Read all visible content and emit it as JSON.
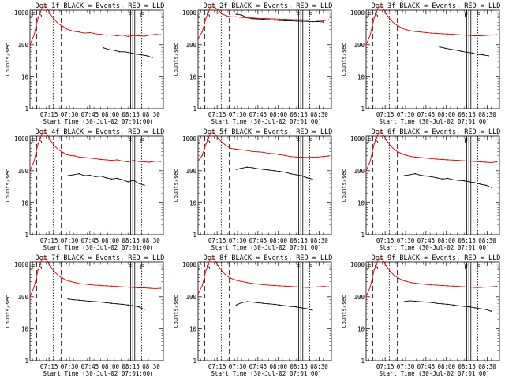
{
  "figure": {
    "xlabel": "Start Time (30-Jul-02 07:01:00)",
    "ylabel": "Counts/sec",
    "x_ticks": [
      "07:15",
      "07:30",
      "07:45",
      "08:00",
      "08:15",
      "08:30"
    ],
    "y_ticks": [
      "1",
      "10",
      "100",
      "1000"
    ],
    "colors": {
      "events": "#000000",
      "lld": "#e00000"
    }
  },
  "chart_data": [
    {
      "type": "line",
      "title": "Det 1f BLACK = Events, RED = LLD",
      "xlabel": "Start Time (30-Jul-02 07:01:00)",
      "ylabel": "Counts/sec",
      "x_unit": "minutes after 07:01",
      "ylim": [
        1,
        1200
      ],
      "ylog": true,
      "xlim": [
        0,
        98
      ],
      "markers": [
        "E",
        "S",
        "F",
        "E"
      ],
      "series": [
        {
          "name": "Events",
          "x": [
            54,
            58,
            62,
            66,
            70,
            74,
            78,
            82,
            86,
            90
          ],
          "values": [
            80,
            70,
            67,
            60,
            60,
            55,
            51,
            48,
            45,
            40
          ]
        },
        {
          "name": "LLD",
          "x": [
            0,
            3,
            6,
            9,
            12,
            15,
            18,
            21,
            24,
            27,
            30,
            33,
            36,
            40,
            44,
            48,
            52,
            56,
            60,
            64,
            68,
            72,
            76,
            80,
            84,
            88,
            92,
            96
          ],
          "values": [
            100,
            200,
            700,
            1500,
            1500,
            900,
            600,
            450,
            380,
            310,
            280,
            260,
            250,
            230,
            240,
            220,
            210,
            200,
            200,
            190,
            200,
            180,
            195,
            190,
            185,
            200,
            210,
            205
          ]
        }
      ]
    },
    {
      "type": "line",
      "title": "Det 2f BLACK = Events, RED = LLD",
      "xlabel": "Start Time (30-Jul-02 07:01:00)",
      "ylabel": "Counts/sec",
      "x_unit": "minutes after 07:01",
      "ylim": [
        1,
        1200
      ],
      "ylog": true,
      "xlim": [
        0,
        98
      ],
      "markers": [
        "S",
        "F",
        "E"
      ],
      "series": [
        {
          "name": "Events",
          "x": [
            28,
            32,
            36,
            40,
            44,
            48,
            52,
            56,
            60,
            64,
            68,
            72,
            76,
            80,
            84,
            88,
            92
          ],
          "values": [
            900,
            850,
            700,
            650,
            640,
            620,
            600,
            590,
            570,
            560,
            560,
            550,
            540,
            540,
            520,
            530,
            510
          ]
        },
        {
          "name": "LLD",
          "x": [
            0,
            3,
            6,
            9,
            12,
            15,
            18,
            21,
            24,
            28,
            32,
            36,
            40,
            44,
            48,
            52,
            56,
            60,
            64,
            68,
            72,
            76,
            80,
            84,
            88,
            92,
            96
          ],
          "values": [
            150,
            250,
            700,
            1500,
            1500,
            1200,
            900,
            800,
            750,
            750,
            720,
            700,
            690,
            670,
            660,
            650,
            640,
            630,
            620,
            610,
            600,
            600,
            590,
            590,
            580,
            560,
            600
          ]
        }
      ]
    },
    {
      "type": "line",
      "title": "Det 3f BLACK = Events, RED = LLD",
      "xlabel": "Start Time (30-Jul-02 07:01:00)",
      "ylabel": "Counts/sec",
      "x_unit": "minutes after 07:01",
      "ylim": [
        1,
        1200
      ],
      "ylog": true,
      "xlim": [
        0,
        98
      ],
      "markers": [
        "E",
        "S",
        "F",
        "E"
      ],
      "series": [
        {
          "name": "Events",
          "x": [
            54,
            58,
            62,
            66,
            70,
            74,
            78,
            82,
            86,
            90
          ],
          "values": [
            85,
            78,
            72,
            68,
            62,
            58,
            55,
            50,
            48,
            45
          ]
        },
        {
          "name": "LLD",
          "x": [
            0,
            3,
            6,
            9,
            12,
            15,
            18,
            21,
            24,
            27,
            30,
            33,
            36,
            40,
            44,
            48,
            52,
            56,
            60,
            64,
            68,
            72,
            76,
            80,
            84,
            88,
            92,
            96
          ],
          "values": [
            100,
            200,
            700,
            1500,
            1500,
            900,
            600,
            450,
            380,
            320,
            290,
            270,
            260,
            250,
            240,
            230,
            225,
            220,
            215,
            210,
            205,
            200,
            195,
            190,
            190,
            195,
            200,
            205
          ]
        }
      ]
    },
    {
      "type": "line",
      "title": "Det 4f BLACK = Events, RED = LLD",
      "xlabel": "Start Time (30-Jul-02 07:01:00)",
      "ylabel": "Counts/sec",
      "x_unit": "minutes after 07:01",
      "ylim": [
        1,
        1200
      ],
      "ylog": true,
      "xlim": [
        0,
        98
      ],
      "markers": [
        "E",
        "S",
        "F",
        "E"
      ],
      "series": [
        {
          "name": "Events",
          "x": [
            28,
            32,
            36,
            40,
            44,
            48,
            52,
            56,
            60,
            64,
            68,
            72,
            76,
            80,
            84
          ],
          "values": [
            70,
            75,
            80,
            70,
            72,
            65,
            68,
            60,
            55,
            58,
            52,
            45,
            50,
            40,
            35
          ]
        },
        {
          "name": "LLD",
          "x": [
            0,
            3,
            6,
            9,
            12,
            15,
            18,
            21,
            24,
            27,
            30,
            33,
            36,
            40,
            44,
            48,
            52,
            56,
            60,
            64,
            68,
            72,
            76,
            80,
            84,
            88,
            92,
            96
          ],
          "values": [
            100,
            200,
            700,
            1500,
            1500,
            900,
            600,
            450,
            380,
            320,
            300,
            290,
            270,
            260,
            250,
            240,
            225,
            220,
            210,
            220,
            200,
            190,
            210,
            195,
            190,
            185,
            200,
            195
          ]
        }
      ]
    },
    {
      "type": "line",
      "title": "Det 5f BLACK = Events, RED = LLD",
      "xlabel": "Start Time (30-Jul-02 07:01:00)",
      "ylabel": "Counts/sec",
      "x_unit": "minutes after 07:01",
      "ylim": [
        1,
        1200
      ],
      "ylog": true,
      "xlim": [
        0,
        98
      ],
      "markers": [
        "S",
        "F",
        "E"
      ],
      "series": [
        {
          "name": "Events",
          "x": [
            28,
            32,
            36,
            40,
            44,
            48,
            52,
            56,
            60,
            64,
            68,
            72,
            76,
            80,
            84
          ],
          "values": [
            110,
            120,
            130,
            125,
            115,
            110,
            105,
            100,
            95,
            90,
            80,
            75,
            70,
            60,
            55
          ]
        },
        {
          "name": "LLD",
          "x": [
            0,
            3,
            6,
            9,
            12,
            15,
            18,
            21,
            24,
            28,
            32,
            36,
            40,
            44,
            48,
            52,
            56,
            60,
            64,
            68,
            72,
            76,
            80,
            84,
            88,
            92,
            96
          ],
          "values": [
            200,
            300,
            700,
            1500,
            1500,
            1000,
            750,
            600,
            500,
            470,
            450,
            430,
            400,
            390,
            380,
            350,
            340,
            320,
            300,
            280,
            270,
            265,
            260,
            265,
            270,
            280,
            290
          ]
        }
      ]
    },
    {
      "type": "line",
      "title": "Det 6f BLACK = Events, RED = LLD",
      "xlabel": "Start Time (30-Jul-02 07:01:00)",
      "ylabel": "Counts/sec",
      "x_unit": "minutes after 07:01",
      "ylim": [
        1,
        1200
      ],
      "ylog": true,
      "xlim": [
        0,
        98
      ],
      "markers": [
        "E",
        "S",
        "F",
        "E"
      ],
      "series": [
        {
          "name": "Events",
          "x": [
            28,
            32,
            36,
            40,
            44,
            48,
            52,
            56,
            60,
            64,
            68,
            72,
            76,
            80,
            84,
            88,
            92
          ],
          "values": [
            70,
            75,
            80,
            72,
            68,
            65,
            60,
            55,
            58,
            52,
            50,
            48,
            45,
            42,
            38,
            35,
            30
          ]
        },
        {
          "name": "LLD",
          "x": [
            0,
            3,
            6,
            9,
            12,
            15,
            18,
            21,
            24,
            27,
            30,
            33,
            36,
            40,
            44,
            48,
            52,
            56,
            60,
            64,
            68,
            72,
            76,
            80,
            84,
            88,
            92,
            96
          ],
          "values": [
            100,
            200,
            700,
            1500,
            1500,
            900,
            600,
            450,
            380,
            330,
            300,
            280,
            270,
            260,
            250,
            240,
            230,
            225,
            220,
            215,
            210,
            205,
            200,
            195,
            190,
            185,
            180,
            190
          ]
        }
      ]
    },
    {
      "type": "line",
      "title": "Det 7f BLACK = Events, RED = LLD",
      "xlabel": "Start Time (30-Jul-02 07:01:00)",
      "ylabel": "Counts/sec",
      "x_unit": "minutes after 07:01",
      "ylim": [
        1,
        1200
      ],
      "ylog": true,
      "xlim": [
        0,
        98
      ],
      "markers": [
        "E",
        "S",
        "F",
        "E"
      ],
      "series": [
        {
          "name": "Events",
          "x": [
            28,
            32,
            36,
            40,
            44,
            48,
            52,
            56,
            60,
            64,
            68,
            72,
            76,
            80,
            84
          ],
          "values": [
            85,
            80,
            78,
            75,
            72,
            70,
            68,
            65,
            62,
            60,
            58,
            55,
            52,
            48,
            40
          ]
        },
        {
          "name": "LLD",
          "x": [
            0,
            3,
            6,
            9,
            12,
            15,
            18,
            21,
            24,
            27,
            30,
            33,
            36,
            40,
            44,
            48,
            52,
            56,
            60,
            64,
            68,
            72,
            76,
            80,
            84,
            88,
            92,
            96
          ],
          "values": [
            100,
            200,
            700,
            1500,
            1500,
            900,
            600,
            450,
            380,
            330,
            300,
            280,
            260,
            250,
            240,
            230,
            225,
            220,
            215,
            210,
            205,
            200,
            195,
            190,
            190,
            185,
            180,
            185
          ]
        }
      ]
    },
    {
      "type": "line",
      "title": "Det 8f BLACK = Events, RED = LLD",
      "xlabel": "Start Time (30-Jul-02 07:01:00)",
      "ylabel": "Counts/sec",
      "x_unit": "minutes after 07:01",
      "ylim": [
        1,
        1200
      ],
      "ylog": true,
      "xlim": [
        0,
        98
      ],
      "markers": [
        "S",
        "F",
        "E"
      ],
      "series": [
        {
          "name": "Events",
          "x": [
            28,
            32,
            36,
            40,
            44,
            48,
            52,
            56,
            60,
            64,
            68,
            72,
            76,
            80,
            84
          ],
          "values": [
            55,
            65,
            70,
            68,
            65,
            62,
            60,
            58,
            55,
            52,
            50,
            48,
            45,
            42,
            38
          ]
        },
        {
          "name": "LLD",
          "x": [
            0,
            3,
            6,
            9,
            12,
            15,
            18,
            21,
            24,
            28,
            32,
            36,
            40,
            44,
            48,
            52,
            56,
            60,
            64,
            68,
            72,
            76,
            80,
            84,
            88,
            92,
            96
          ],
          "values": [
            120,
            220,
            700,
            1500,
            1500,
            900,
            600,
            450,
            380,
            330,
            300,
            280,
            260,
            250,
            240,
            230,
            225,
            220,
            215,
            210,
            205,
            200,
            195,
            200,
            205,
            210,
            205
          ]
        }
      ]
    },
    {
      "type": "line",
      "title": "Det 9f BLACK = Events, RED = LLD",
      "xlabel": "Start Time (30-Jul-02 07:01:00)",
      "ylabel": "Counts/sec",
      "x_unit": "minutes after 07:01",
      "ylim": [
        1,
        1200
      ],
      "ylog": true,
      "xlim": [
        0,
        98
      ],
      "markers": [
        "E",
        "S",
        "F",
        "E"
      ],
      "series": [
        {
          "name": "Events",
          "x": [
            28,
            32,
            36,
            40,
            44,
            48,
            52,
            56,
            60,
            64,
            68,
            72,
            76,
            80,
            84,
            88,
            92
          ],
          "values": [
            70,
            75,
            72,
            70,
            68,
            66,
            62,
            60,
            58,
            55,
            52,
            50,
            48,
            45,
            42,
            40,
            35
          ]
        },
        {
          "name": "LLD",
          "x": [
            0,
            3,
            6,
            9,
            12,
            15,
            18,
            21,
            24,
            27,
            30,
            33,
            36,
            40,
            44,
            48,
            52,
            56,
            60,
            64,
            68,
            72,
            76,
            80,
            84,
            88,
            92,
            96
          ],
          "values": [
            100,
            200,
            700,
            1500,
            1500,
            900,
            600,
            450,
            380,
            330,
            300,
            280,
            265,
            255,
            245,
            235,
            230,
            225,
            220,
            215,
            210,
            205,
            200,
            195,
            195,
            200,
            205,
            210
          ]
        }
      ]
    }
  ]
}
